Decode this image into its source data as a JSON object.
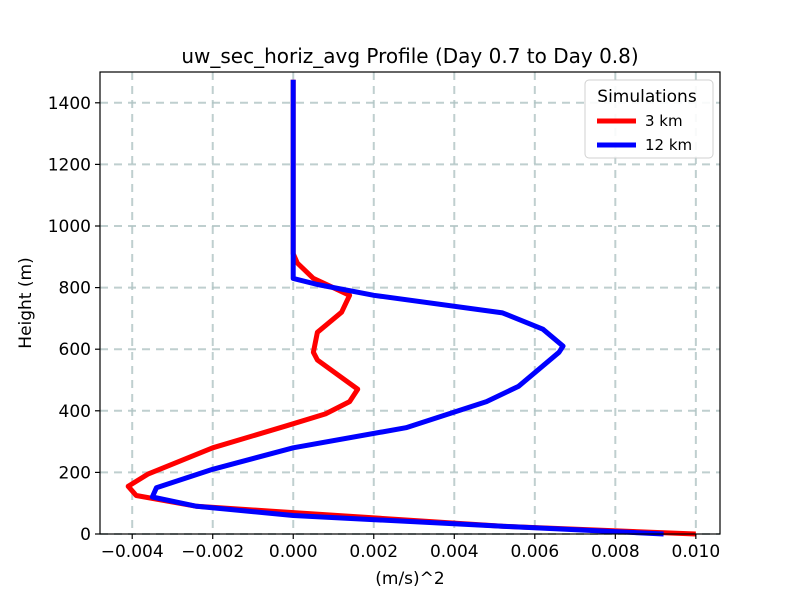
{
  "chart_data": {
    "type": "line",
    "title": "uw_sec_horiz_avg Profile (Day 0.7 to Day 0.8)",
    "xlabel": "(m/s)^2",
    "ylabel": "Height (m)",
    "xlim": [
      -0.0048,
      0.0106
    ],
    "ylim": [
      0,
      1500
    ],
    "x_ticks": [
      -0.004,
      -0.002,
      0.0,
      0.002,
      0.004,
      0.006,
      0.008,
      0.01
    ],
    "x_tick_labels": [
      "−0.004",
      "−0.002",
      "0.000",
      "0.002",
      "0.004",
      "0.006",
      "0.008",
      "0.010"
    ],
    "y_ticks": [
      0,
      200,
      400,
      600,
      800,
      1000,
      1200,
      1400
    ],
    "y_tick_labels": [
      "0",
      "200",
      "400",
      "600",
      "800",
      "1000",
      "1200",
      "1400"
    ],
    "grid": true,
    "legend": {
      "title": "Simulations",
      "location": "top-right"
    },
    "series": [
      {
        "name": "3 km",
        "color": "#ff0000",
        "x": [
          0.01,
          0.0052,
          -0.0024,
          -0.0039,
          -0.0041,
          -0.0036,
          -0.002,
          -0.0002,
          0.0008,
          0.0014,
          0.0016,
          0.0006,
          0.0005,
          0.0006,
          0.0012,
          0.0014,
          0.0005,
          0.0001,
          0.0,
          0.0,
          0.0,
          0.0
        ],
        "y": [
          0,
          25,
          90,
          125,
          155,
          195,
          280,
          350,
          390,
          430,
          470,
          565,
          590,
          655,
          720,
          775,
          830,
          880,
          910,
          950,
          1200,
          1475
        ]
      },
      {
        "name": "12 km",
        "color": "#0000ff",
        "x": [
          0.0092,
          0.0052,
          0.0,
          -0.0024,
          -0.0035,
          -0.0034,
          -0.002,
          0.0,
          0.0028,
          0.0048,
          0.0056,
          0.0066,
          0.0067,
          0.0062,
          0.0052,
          0.002,
          0.0006,
          0.0,
          0.0,
          0.0,
          0.0
        ],
        "y": [
          0,
          25,
          60,
          90,
          120,
          150,
          210,
          280,
          345,
          430,
          480,
          590,
          610,
          665,
          718,
          775,
          810,
          830,
          900,
          1200,
          1475
        ]
      }
    ]
  }
}
